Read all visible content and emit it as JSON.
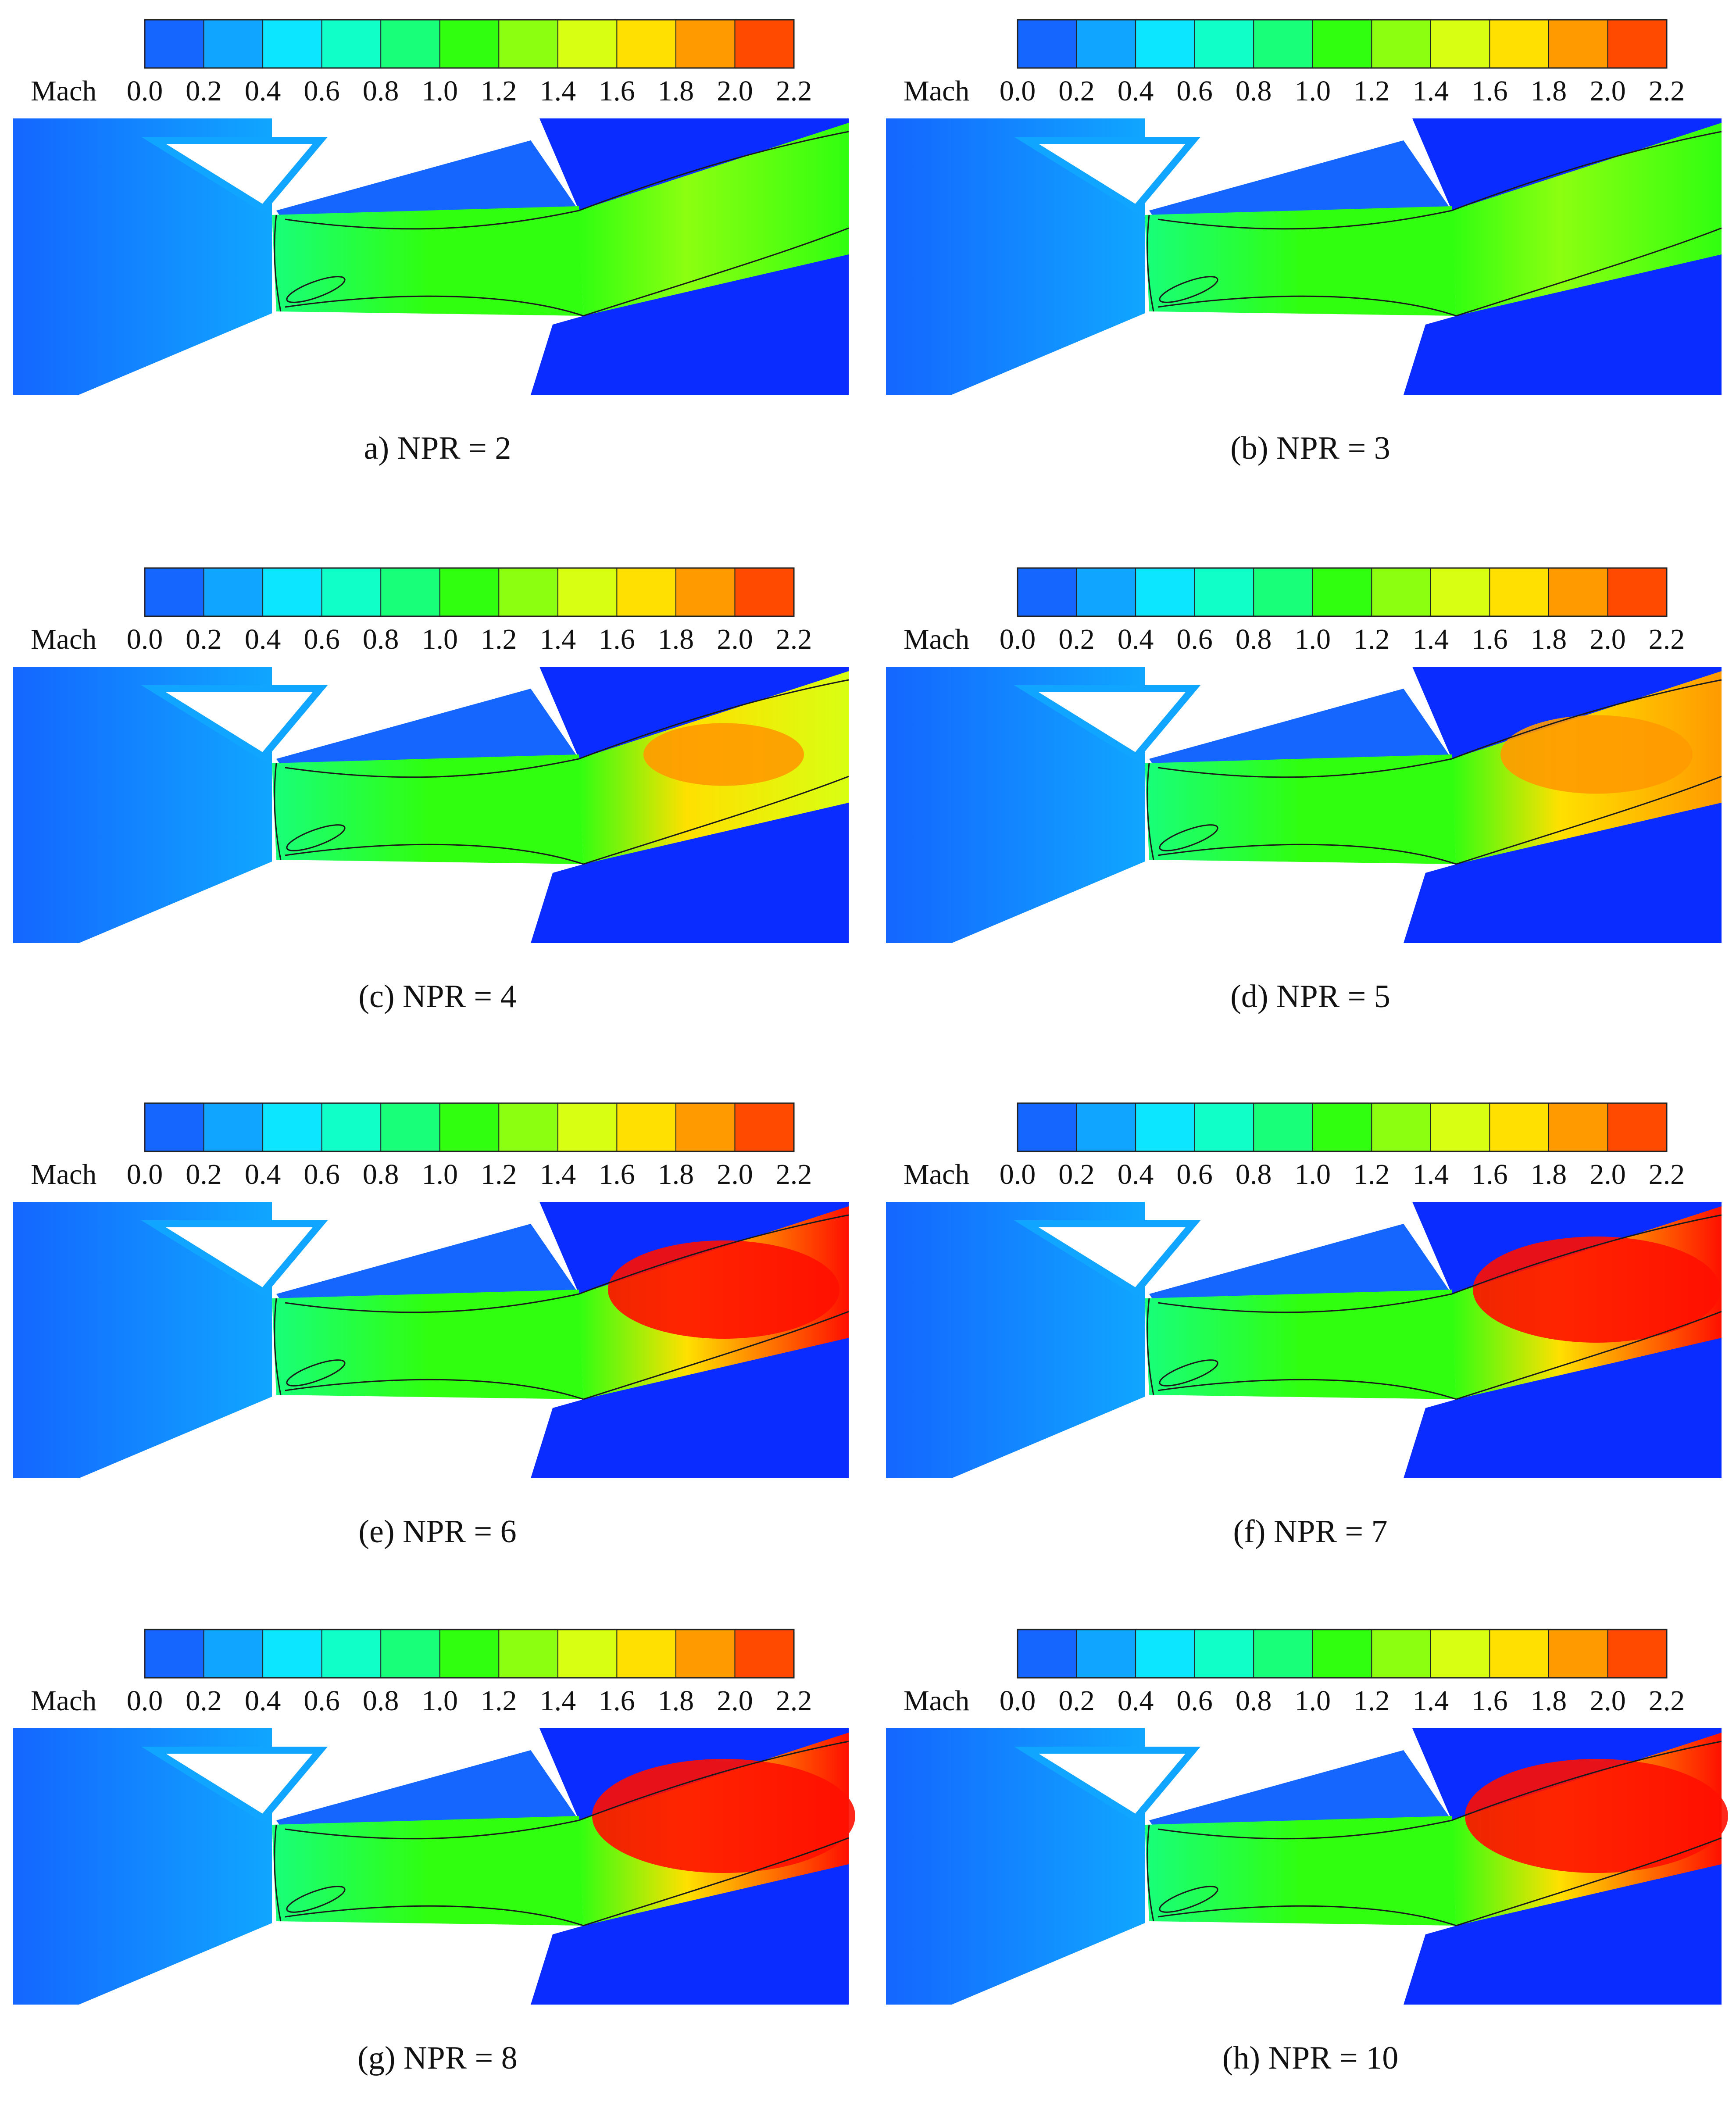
{
  "figure": {
    "colorbar": {
      "label": "Mach",
      "ticks": [
        "0.0",
        "0.2",
        "0.4",
        "0.6",
        "0.8",
        "1.0",
        "1.2",
        "1.4",
        "1.6",
        "1.8",
        "2.0",
        "2.2"
      ],
      "colors": [
        "#0a2cff",
        "#1466ff",
        "#10a6ff",
        "#0ce6ff",
        "#10ffc8",
        "#18ff7a",
        "#30ff10",
        "#8cff10",
        "#d8ff12",
        "#ffe000",
        "#ff9a00",
        "#ff4a00",
        "#ff1000"
      ]
    },
    "panels": [
      {
        "caption": "a) NPR = 2",
        "core": 0.0
      },
      {
        "caption": "(b) NPR = 3",
        "core": 0.1
      },
      {
        "caption": "(c) NPR = 4",
        "core": 0.35
      },
      {
        "caption": "(d) NPR = 5",
        "core": 0.55
      },
      {
        "caption": "(e) NPR = 6",
        "core": 0.8
      },
      {
        "caption": "(f) NPR = 7",
        "core": 0.9
      },
      {
        "caption": "(g) NPR = 8",
        "core": 1.0
      },
      {
        "caption": "(h) NPR = 10",
        "core": 1.0
      }
    ]
  }
}
